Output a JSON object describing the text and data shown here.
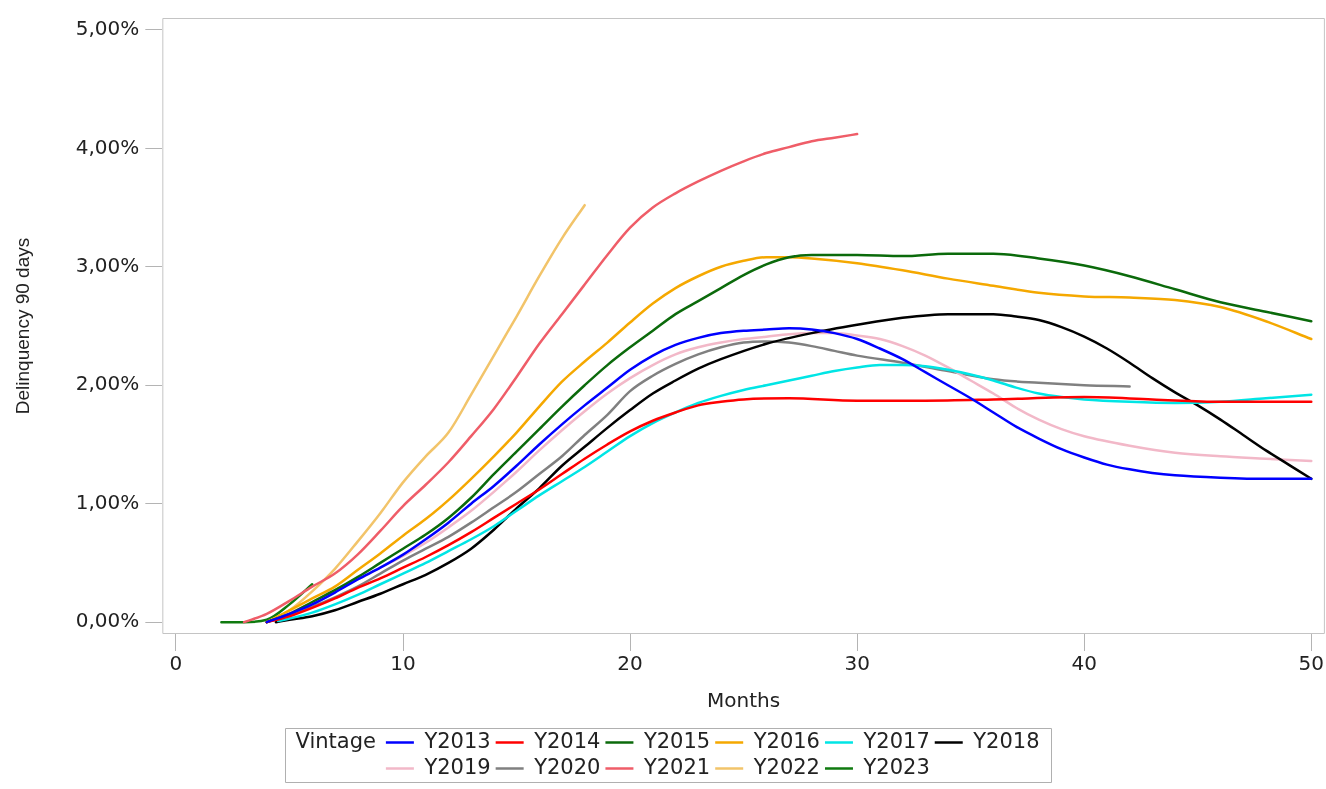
{
  "chart_data": {
    "type": "line",
    "xlabel": "Months",
    "ylabel": "Delinquency 90 days",
    "legend_title": "Vintage",
    "legend": "bottom",
    "marker": "none",
    "line_style": "solid",
    "xlim": [
      -0.6,
      50.6
    ],
    "xticks": [
      0,
      10,
      20,
      30,
      40,
      50
    ],
    "ylim": [
      -0.1,
      5.1
    ],
    "yticks": [
      {
        "value": 0,
        "label": "0,00%"
      },
      {
        "value": 1,
        "label": "1,00%"
      },
      {
        "value": 2,
        "label": "2,00%"
      },
      {
        "value": 3,
        "label": "3,00%"
      },
      {
        "value": 4,
        "label": "4,00%"
      },
      {
        "value": 5,
        "label": "5,00%"
      }
    ],
    "series": [
      {
        "name": "Y2013",
        "color": "#0000ff",
        "x": [
          4,
          5,
          6,
          7,
          8,
          9,
          10,
          11,
          12,
          13,
          14,
          15,
          16,
          17,
          18,
          19,
          20,
          21,
          22,
          23,
          24,
          25,
          26,
          27,
          28,
          29,
          30,
          31,
          32,
          33,
          34,
          35,
          36,
          37,
          38,
          39,
          40,
          41,
          42,
          43,
          44,
          46,
          48,
          50
        ],
        "values": [
          0,
          0.07,
          0.15,
          0.25,
          0.36,
          0.46,
          0.57,
          0.7,
          0.84,
          1.0,
          1.15,
          1.32,
          1.5,
          1.67,
          1.83,
          1.98,
          2.13,
          2.25,
          2.34,
          2.4,
          2.44,
          2.46,
          2.47,
          2.48,
          2.47,
          2.44,
          2.39,
          2.31,
          2.22,
          2.11,
          2.0,
          1.89,
          1.77,
          1.65,
          1.55,
          1.46,
          1.39,
          1.33,
          1.29,
          1.26,
          1.24,
          1.22,
          1.21,
          1.21
        ]
      },
      {
        "name": "Y2014",
        "color": "#ff0000",
        "x": [
          4,
          5,
          6,
          7,
          8,
          9,
          10,
          11,
          12,
          13,
          14,
          15,
          16,
          17,
          18,
          19,
          20,
          21,
          22,
          23,
          24,
          25,
          27,
          30,
          33,
          36,
          40,
          43,
          46,
          50
        ],
        "values": [
          0,
          0.05,
          0.12,
          0.2,
          0.29,
          0.37,
          0.46,
          0.55,
          0.65,
          0.76,
          0.88,
          1.0,
          1.12,
          1.25,
          1.38,
          1.5,
          1.61,
          1.7,
          1.77,
          1.83,
          1.86,
          1.88,
          1.89,
          1.87,
          1.87,
          1.88,
          1.9,
          1.88,
          1.86,
          1.86
        ]
      },
      {
        "name": "Y2015",
        "color": "#0b6a0b",
        "x": [
          4,
          5,
          6,
          7,
          8,
          9,
          10,
          11,
          12,
          13,
          14,
          15,
          16,
          17,
          18,
          19,
          20,
          21,
          22,
          23,
          24,
          25,
          26,
          27,
          28,
          30,
          32,
          34,
          36,
          38,
          40,
          42,
          44,
          46,
          48,
          50
        ],
        "values": [
          0,
          0.07,
          0.17,
          0.27,
          0.38,
          0.5,
          0.62,
          0.74,
          0.88,
          1.05,
          1.25,
          1.44,
          1.63,
          1.82,
          2.0,
          2.17,
          2.32,
          2.46,
          2.6,
          2.71,
          2.82,
          2.93,
          3.02,
          3.08,
          3.1,
          3.1,
          3.09,
          3.11,
          3.11,
          3.07,
          3.01,
          2.92,
          2.81,
          2.7,
          2.62,
          2.54
        ]
      },
      {
        "name": "Y2016",
        "color": "#f5a800",
        "x": [
          4,
          5,
          6,
          7,
          8,
          9,
          10,
          11,
          12,
          13,
          14,
          15,
          16,
          17,
          18,
          19,
          20,
          21,
          22,
          23,
          24,
          25,
          26,
          27,
          28,
          30,
          32,
          34,
          36,
          38,
          40,
          42,
          44,
          46,
          48,
          50
        ],
        "values": [
          0,
          0.1,
          0.2,
          0.3,
          0.44,
          0.58,
          0.73,
          0.87,
          1.03,
          1.21,
          1.4,
          1.6,
          1.82,
          2.03,
          2.2,
          2.36,
          2.53,
          2.69,
          2.82,
          2.92,
          3.0,
          3.05,
          3.08,
          3.08,
          3.07,
          3.03,
          2.97,
          2.9,
          2.84,
          2.78,
          2.75,
          2.74,
          2.72,
          2.66,
          2.54,
          2.39
        ]
      },
      {
        "name": "Y2017",
        "color": "#00e5e5",
        "x": [
          4.5,
          5,
          6,
          7,
          8,
          9,
          10,
          11,
          12,
          13,
          14,
          15,
          16,
          17,
          18,
          19,
          20,
          21,
          22,
          23,
          24,
          25,
          26,
          27,
          28,
          29,
          30,
          31,
          32,
          33,
          34,
          35,
          36,
          37,
          38,
          39,
          40,
          42,
          44,
          46,
          48,
          50
        ],
        "values": [
          0.01,
          0.03,
          0.08,
          0.15,
          0.23,
          0.32,
          0.41,
          0.5,
          0.6,
          0.7,
          0.81,
          0.94,
          1.07,
          1.19,
          1.31,
          1.44,
          1.57,
          1.68,
          1.77,
          1.85,
          1.91,
          1.96,
          2.0,
          2.04,
          2.08,
          2.12,
          2.15,
          2.17,
          2.17,
          2.16,
          2.13,
          2.09,
          2.04,
          1.98,
          1.93,
          1.9,
          1.88,
          1.86,
          1.85,
          1.86,
          1.89,
          1.92
        ]
      },
      {
        "name": "Y2018",
        "color": "#000000",
        "x": [
          4.4,
          5,
          6,
          7,
          8,
          9,
          10,
          11,
          12,
          13,
          14,
          15,
          16,
          17,
          18,
          19,
          20,
          21,
          22,
          23,
          24,
          26,
          28,
          30,
          32,
          34,
          36,
          37,
          38,
          39,
          40,
          41,
          42,
          43,
          44,
          45,
          46,
          47,
          48,
          49,
          50
        ],
        "values": [
          0,
          0.02,
          0.05,
          0.1,
          0.17,
          0.24,
          0.32,
          0.4,
          0.5,
          0.62,
          0.78,
          0.96,
          1.13,
          1.32,
          1.48,
          1.64,
          1.79,
          1.93,
          2.04,
          2.14,
          2.22,
          2.35,
          2.44,
          2.51,
          2.57,
          2.6,
          2.6,
          2.58,
          2.55,
          2.49,
          2.41,
          2.31,
          2.19,
          2.06,
          1.94,
          1.83,
          1.71,
          1.58,
          1.45,
          1.33,
          1.21
        ]
      },
      {
        "name": "Y2019",
        "color": "#f2b8c8",
        "x": [
          4,
          5,
          6,
          7,
          8,
          9,
          10,
          11,
          12,
          13,
          14,
          15,
          16,
          17,
          18,
          19,
          20,
          21,
          22,
          23,
          24,
          25,
          26,
          27,
          28,
          29,
          30,
          31,
          32,
          33,
          34,
          35,
          36,
          37,
          38,
          39,
          40,
          42,
          44,
          46,
          48,
          50
        ],
        "values": [
          0,
          0.08,
          0.16,
          0.26,
          0.36,
          0.46,
          0.56,
          0.67,
          0.8,
          0.94,
          1.1,
          1.27,
          1.45,
          1.62,
          1.78,
          1.93,
          2.06,
          2.17,
          2.26,
          2.32,
          2.36,
          2.39,
          2.41,
          2.43,
          2.44,
          2.44,
          2.42,
          2.39,
          2.33,
          2.25,
          2.15,
          2.04,
          1.93,
          1.81,
          1.71,
          1.63,
          1.57,
          1.49,
          1.43,
          1.4,
          1.38,
          1.36
        ]
      },
      {
        "name": "Y2020",
        "color": "#808080",
        "x": [
          4,
          5,
          6,
          7,
          8,
          9,
          10,
          11,
          12,
          13,
          14,
          15,
          16,
          17,
          18,
          19,
          20,
          21,
          22,
          23,
          24,
          25,
          26,
          27,
          28,
          29,
          30,
          32,
          34,
          36,
          38,
          40,
          42
        ],
        "values": [
          0,
          0.06,
          0.13,
          0.21,
          0.3,
          0.41,
          0.52,
          0.62,
          0.72,
          0.84,
          0.97,
          1.1,
          1.25,
          1.4,
          1.58,
          1.75,
          1.95,
          2.08,
          2.18,
          2.26,
          2.32,
          2.36,
          2.37,
          2.36,
          2.33,
          2.29,
          2.25,
          2.19,
          2.12,
          2.05,
          2.02,
          2.0,
          1.99
        ]
      },
      {
        "name": "Y2021",
        "color": "#ef5d68",
        "x": [
          3,
          4,
          5,
          6,
          7,
          8,
          9,
          10,
          11,
          12,
          13,
          14,
          15,
          16,
          17,
          18,
          19,
          20,
          21,
          22,
          23,
          24,
          25,
          26,
          27,
          28,
          29,
          30
        ],
        "values": [
          0,
          0.07,
          0.18,
          0.3,
          0.41,
          0.57,
          0.77,
          0.98,
          1.16,
          1.35,
          1.57,
          1.8,
          2.07,
          2.35,
          2.6,
          2.85,
          3.1,
          3.33,
          3.5,
          3.62,
          3.72,
          3.81,
          3.89,
          3.96,
          4.01,
          4.06,
          4.09,
          4.12
        ]
      },
      {
        "name": "Y2022",
        "color": "#f2c46a",
        "x": [
          4,
          5,
          6,
          7,
          8,
          9,
          10,
          11,
          12,
          13,
          14,
          15,
          16,
          17,
          18
        ],
        "values": [
          0,
          0.1,
          0.26,
          0.45,
          0.68,
          0.92,
          1.18,
          1.4,
          1.6,
          1.92,
          2.25,
          2.58,
          2.92,
          3.24,
          3.52
        ]
      },
      {
        "name": "Y2023",
        "color": "#0f7a0f",
        "x": [
          2,
          3,
          4,
          5,
          6
        ],
        "values": [
          0,
          0,
          0.02,
          0.15,
          0.32
        ]
      }
    ]
  }
}
